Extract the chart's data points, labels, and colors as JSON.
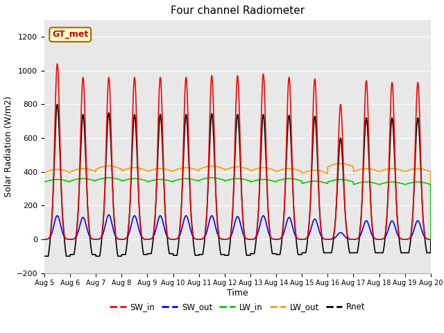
{
  "title": "Four channel Radiometer",
  "xlabel": "Time",
  "ylabel": "Solar Radiation (W/m2)",
  "ylim": [
    -200,
    1300
  ],
  "yticks": [
    -200,
    0,
    200,
    400,
    600,
    800,
    1000,
    1200
  ],
  "xtick_labels": [
    "Aug 5",
    "Aug 6",
    "Aug 7",
    "Aug 8",
    "Aug 9",
    "Aug 10",
    "Aug 11",
    "Aug 12",
    "Aug 13",
    "Aug 14",
    "Aug 15",
    "Aug 16",
    "Aug 17",
    "Aug 18",
    "Aug 19",
    "Aug 20"
  ],
  "annotation_text": "GT_met",
  "annotation_bg": "#ffffcc",
  "annotation_border": "#aa6600",
  "annotation_text_color": "#cc0000",
  "colors": {
    "SW_in": "#ff0000",
    "SW_out": "#0000ff",
    "LW_in": "#00cc00",
    "LW_out": "#ff9900",
    "Rnet": "#000000"
  },
  "legend_labels": [
    "SW_in",
    "SW_out",
    "LW_in",
    "LW_out",
    "Rnet"
  ],
  "fig_bg_color": "#ffffff",
  "plot_bg_color": "#e8e8e8",
  "SW_in_peak": [
    1040,
    960,
    960,
    960,
    960,
    960,
    970,
    970,
    980,
    960,
    950,
    800,
    940,
    930,
    930
  ],
  "SW_out_peak": [
    140,
    130,
    145,
    140,
    140,
    140,
    140,
    135,
    140,
    130,
    120,
    40,
    110,
    110,
    110
  ],
  "LW_in_base": [
    340,
    345,
    350,
    345,
    340,
    345,
    350,
    345,
    340,
    345,
    330,
    340,
    325,
    325,
    325
  ],
  "LW_out_base": [
    395,
    400,
    415,
    405,
    400,
    405,
    415,
    410,
    405,
    400,
    390,
    430,
    400,
    400,
    400
  ],
  "Rnet_peak": [
    800,
    740,
    750,
    740,
    740,
    740,
    745,
    740,
    740,
    735,
    730,
    600,
    720,
    720,
    720
  ],
  "Rnet_night": [
    -100,
    -90,
    -100,
    -90,
    -85,
    -95,
    -90,
    -95,
    -85,
    -90,
    -80,
    -80,
    -80,
    -80,
    -80
  ]
}
